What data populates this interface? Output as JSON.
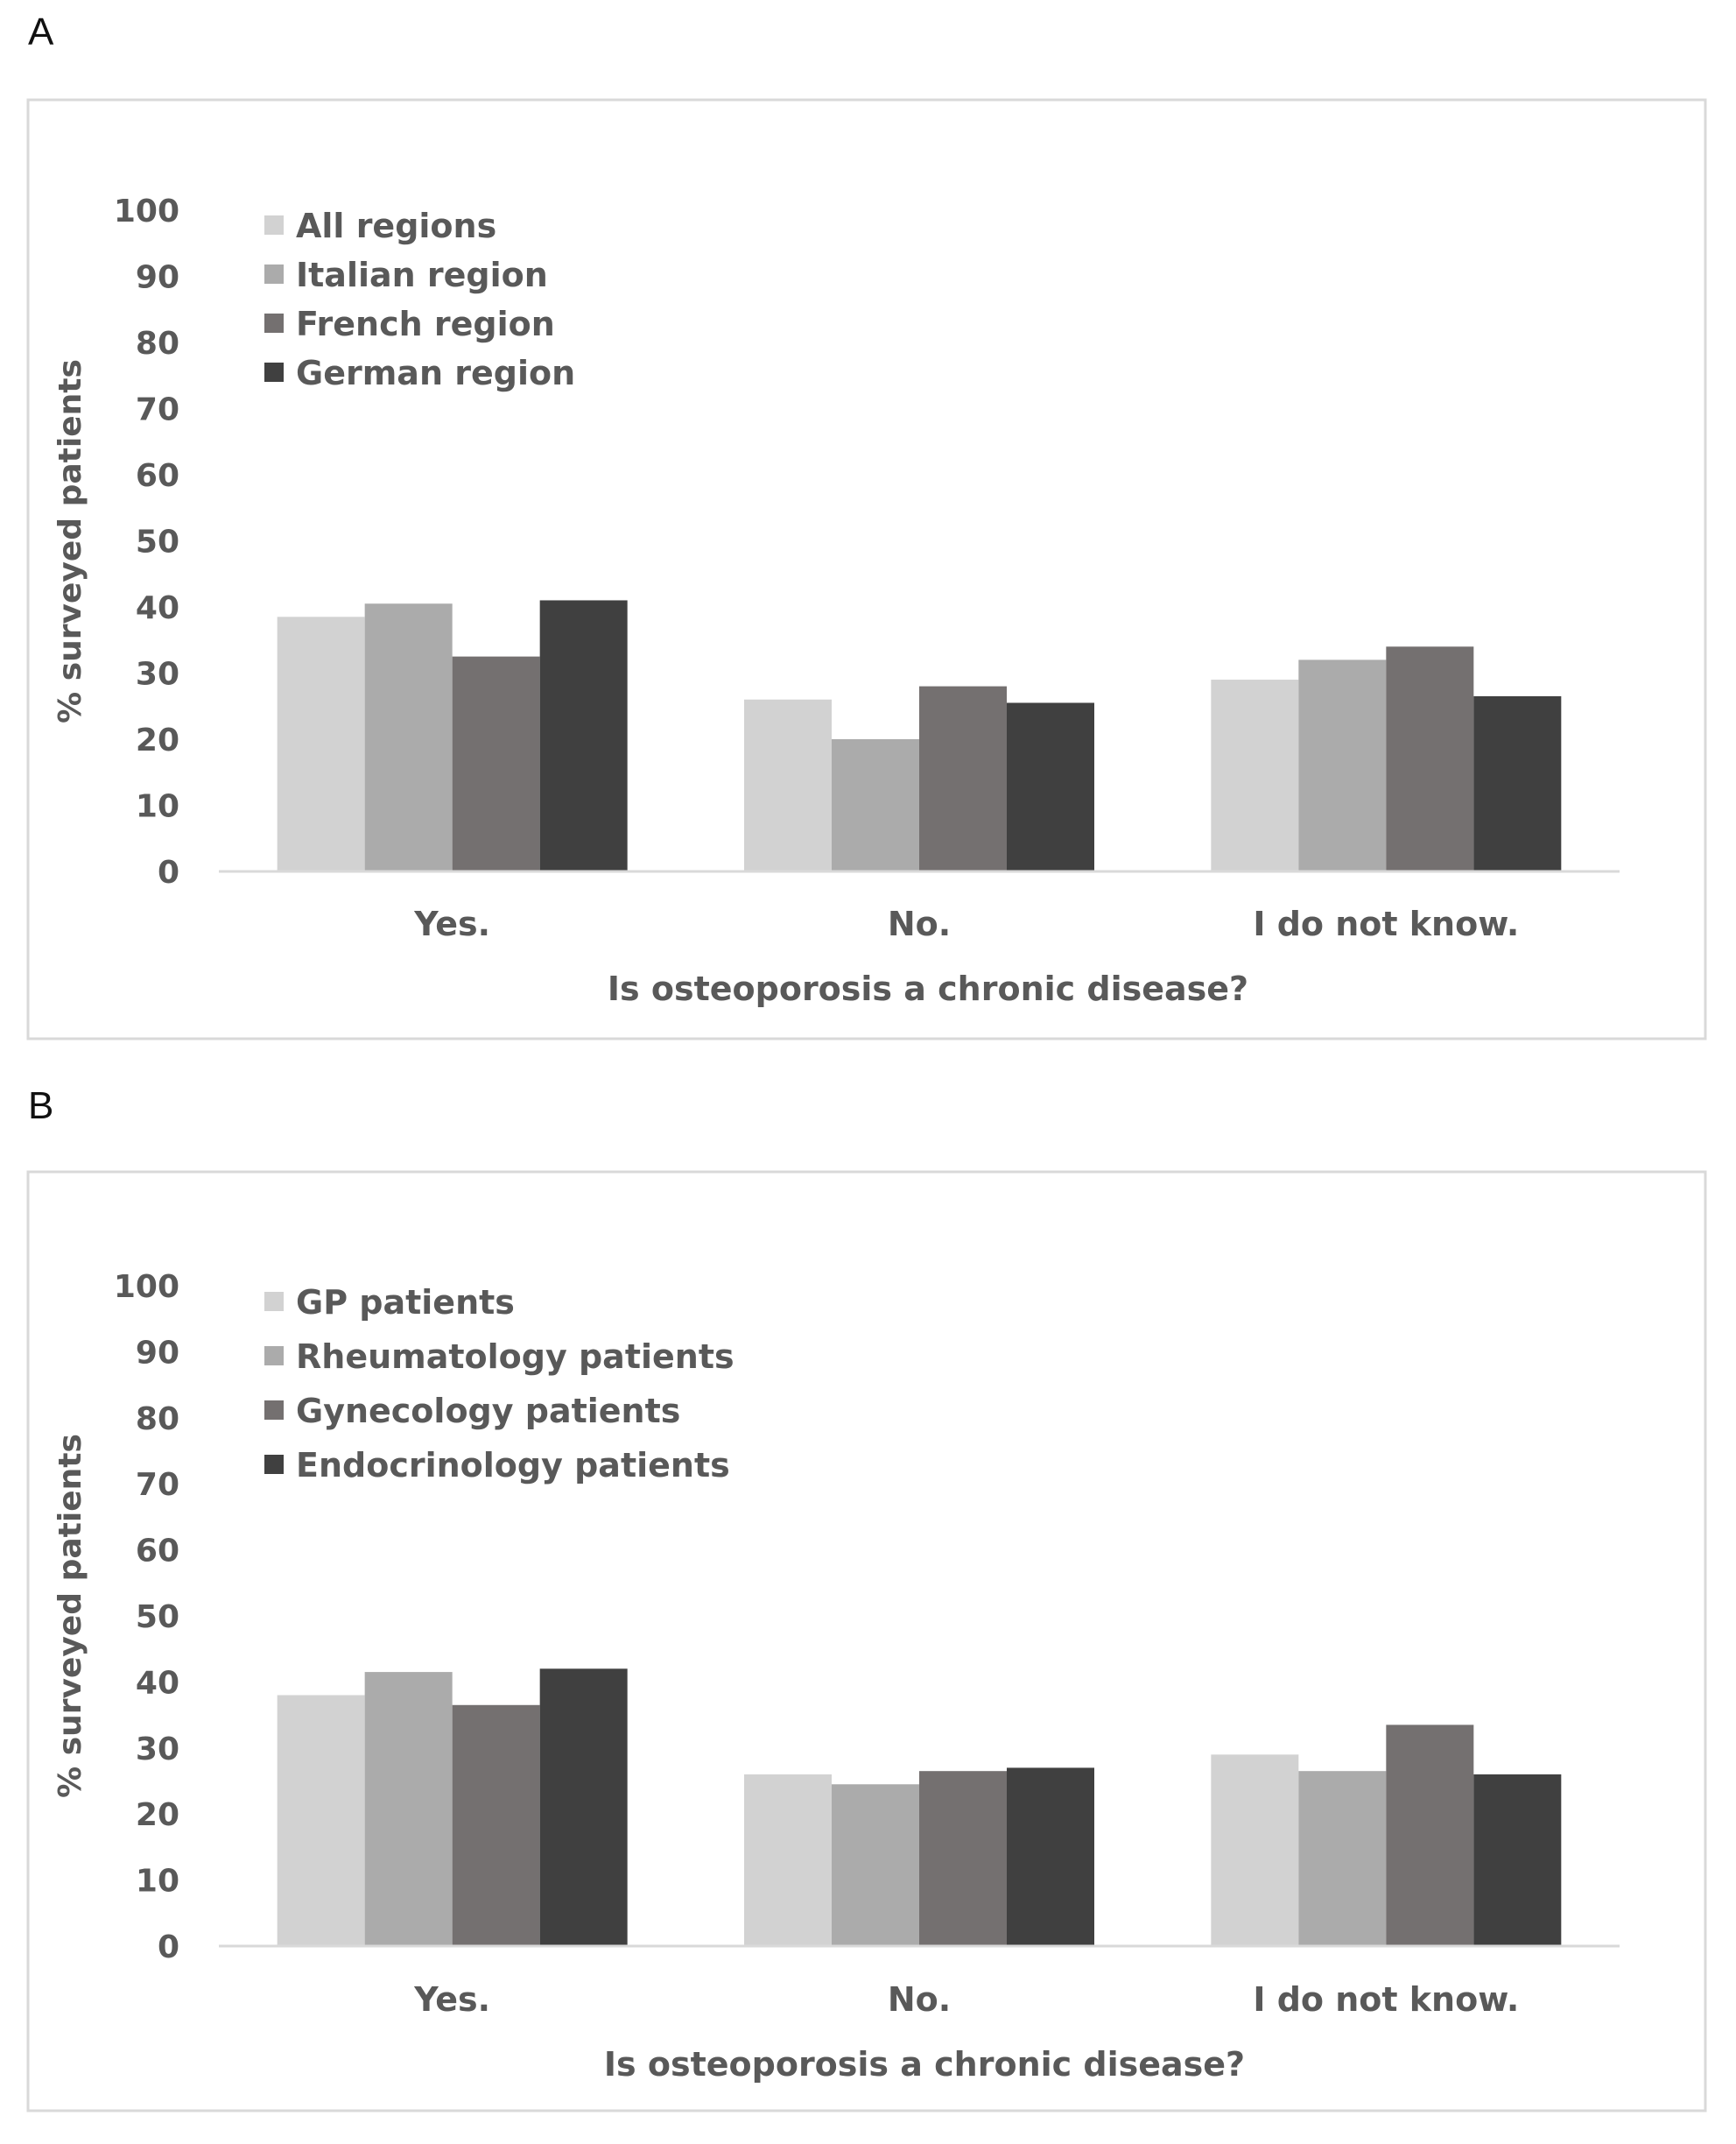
{
  "panels": [
    {
      "letter": "A",
      "chart_data": {
        "type": "bar",
        "title": "",
        "xlabel": "Is osteoporosis a chronic disease?",
        "ylabel": "% surveyed patients",
        "ylim": [
          0,
          100
        ],
        "yticks": [
          "0",
          "10",
          "20",
          "30",
          "40",
          "50",
          "60",
          "70",
          "80",
          "90",
          "100"
        ],
        "categories": [
          "Yes.",
          "No.",
          "I do not know."
        ],
        "legend_position": "top-left",
        "gridlines": false,
        "series": [
          {
            "name": "All regions",
            "color": "#d2d2d2",
            "values": [
              38.5,
              26,
              29
            ]
          },
          {
            "name": "Italian region",
            "color": "#ababab",
            "values": [
              40.5,
              20,
              32
            ]
          },
          {
            "name": "French region",
            "color": "#747070",
            "values": [
              32.5,
              28,
              34
            ]
          },
          {
            "name": "German region",
            "color": "#404040",
            "values": [
              41,
              25.5,
              26.5
            ]
          }
        ]
      }
    },
    {
      "letter": "B",
      "chart_data": {
        "type": "bar",
        "title": "",
        "xlabel": "Is osteoporosis a chronic disease?",
        "ylabel": "% surveyed patients",
        "ylim": [
          0,
          100
        ],
        "yticks": [
          "0",
          "10",
          "20",
          "30",
          "40",
          "50",
          "60",
          "70",
          "80",
          "90",
          "100"
        ],
        "categories": [
          "Yes.",
          "No.",
          "I do not know."
        ],
        "legend_position": "top-left",
        "gridlines": false,
        "series": [
          {
            "name": "GP patients",
            "color": "#d2d2d2",
            "values": [
              38,
              26,
              29
            ]
          },
          {
            "name": "Rheumatology patients",
            "color": "#ababab",
            "values": [
              41.5,
              24.5,
              26.5
            ]
          },
          {
            "name": "Gynecology patients",
            "color": "#747070",
            "values": [
              36.5,
              26.5,
              33.5
            ]
          },
          {
            "name": "Endocrinology patients",
            "color": "#404040",
            "values": [
              42,
              27,
              26
            ]
          }
        ]
      }
    }
  ]
}
